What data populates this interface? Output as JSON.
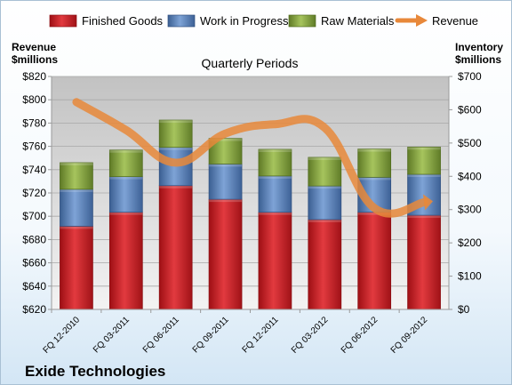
{
  "company": "Exide Technologies",
  "chart_data": {
    "type": "bar",
    "stacked": true,
    "title": "Quarterly Periods",
    "categories": [
      "FQ 12-2010",
      "FQ 03-2011",
      "FQ 06-2011",
      "FQ 09-2011",
      "FQ 12-2011",
      "FQ 03-2012",
      "FQ 06-2012",
      "FQ 09-2012"
    ],
    "series": [
      {
        "name": "Finished Goods",
        "axis": "right",
        "color": "#c0181e",
        "values": [
          250,
          292,
          372,
          331,
          292,
          270,
          292,
          283
        ]
      },
      {
        "name": "Work in Progress",
        "axis": "right",
        "color": "#4f7ab5",
        "values": [
          111,
          107,
          115,
          106,
          109,
          101,
          105,
          123
        ]
      },
      {
        "name": "Raw Materials",
        "axis": "right",
        "color": "#7a9a36",
        "values": [
          80,
          80,
          82,
          77,
          80,
          86,
          85,
          82
        ]
      }
    ],
    "line_series": {
      "name": "Revenue",
      "axis": "left",
      "type": "line",
      "color": "#e8883a",
      "values": [
        798,
        774,
        746,
        771,
        779,
        776,
        707,
        712
      ]
    },
    "left_axis": {
      "label_line1": "Revenue",
      "label_line2": "$millions",
      "ylim": [
        620,
        820
      ],
      "ticks": [
        "$620",
        "$640",
        "$660",
        "$680",
        "$700",
        "$720",
        "$740",
        "$760",
        "$780",
        "$800",
        "$820"
      ]
    },
    "right_axis": {
      "label_line1": "Inventory",
      "label_line2": "$millions",
      "ylim": [
        0,
        700
      ],
      "ticks": [
        "$0",
        "$100",
        "$200",
        "$300",
        "$400",
        "$500",
        "$600",
        "$700"
      ]
    },
    "grid": true,
    "legend_position": "top"
  }
}
